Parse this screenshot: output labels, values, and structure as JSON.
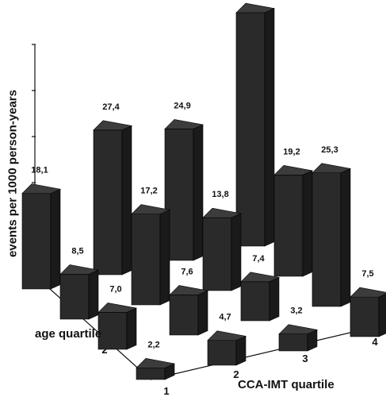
{
  "chart_data": {
    "type": "bar",
    "ylabel": "events per 1000 person-years",
    "xlabel": "CCA-IMT quartile",
    "zlabel": "age quartile",
    "x_categories": [
      "1",
      "2",
      "3",
      "4"
    ],
    "z_categories": [
      "1",
      "2",
      "3",
      "4"
    ],
    "points": [
      {
        "x": "1",
        "z": "1",
        "value": "2,2"
      },
      {
        "x": "1",
        "z": "2",
        "value": "7,0"
      },
      {
        "x": "1",
        "z": "3",
        "value": "8,5"
      },
      {
        "x": "1",
        "z": "4",
        "value": "18,1"
      },
      {
        "x": "2",
        "z": "1",
        "value": "4,7"
      },
      {
        "x": "2",
        "z": "2",
        "value": "7,6"
      },
      {
        "x": "2",
        "z": "3",
        "value": "17,2"
      },
      {
        "x": "2",
        "z": "4",
        "value": "27,4"
      },
      {
        "x": "3",
        "z": "1",
        "value": "3,2"
      },
      {
        "x": "3",
        "z": "2",
        "value": "7,4"
      },
      {
        "x": "3",
        "z": "3",
        "value": "13,8"
      },
      {
        "x": "3",
        "z": "4",
        "value": "24,9"
      },
      {
        "x": "4",
        "z": "1",
        "value": "7,5"
      },
      {
        "x": "4",
        "z": "2",
        "value": "25,3"
      },
      {
        "x": "4",
        "z": "3",
        "value": "19,2"
      },
      {
        "x": "4",
        "z": "4",
        "value": "44,2"
      }
    ],
    "grid": false,
    "bar_color": "#2a2a2a"
  }
}
